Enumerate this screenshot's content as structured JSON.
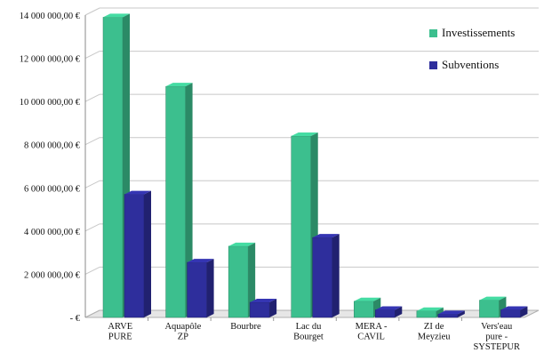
{
  "chart_data": {
    "type": "bar",
    "categories": [
      [
        "ARVE",
        "PURE"
      ],
      [
        "Aquapôle",
        "ZP"
      ],
      [
        "Bourbre"
      ],
      [
        "Lac du",
        "Bourget"
      ],
      [
        "MERA -",
        "CAVIL"
      ],
      [
        "ZI de",
        "Meyzieu"
      ],
      [
        "Vers'eau",
        "pure -",
        "SYSTEPUR"
      ]
    ],
    "series": [
      {
        "name": "Investissements",
        "color": "#3cbf8e",
        "values": [
          13900000,
          10700000,
          3300000,
          8400000,
          750000,
          300000,
          800000
        ]
      },
      {
        "name": "Subventions",
        "color": "#2e2e9c",
        "values": [
          5700000,
          2550000,
          700000,
          3700000,
          350000,
          150000,
          350000
        ]
      }
    ],
    "ylim": [
      0,
      14000000
    ],
    "yticks": [
      {
        "value": 0,
        "label": "-  €"
      },
      {
        "value": 2000000,
        "label": "2 000 000,00 €"
      },
      {
        "value": 4000000,
        "label": "4 000 000,00 €"
      },
      {
        "value": 6000000,
        "label": "6 000 000,00 €"
      },
      {
        "value": 8000000,
        "label": "8 000 000,00 €"
      },
      {
        "value": 10000000,
        "label": "10 000 000,00 €"
      },
      {
        "value": 12000000,
        "label": "12 000 000,00 €"
      },
      {
        "value": 14000000,
        "label": "14 000 000,00 €"
      }
    ],
    "grid": true,
    "legend_position": "top-right",
    "style": "3d-clustered-column",
    "title": "",
    "xlabel": "",
    "ylabel": ""
  }
}
